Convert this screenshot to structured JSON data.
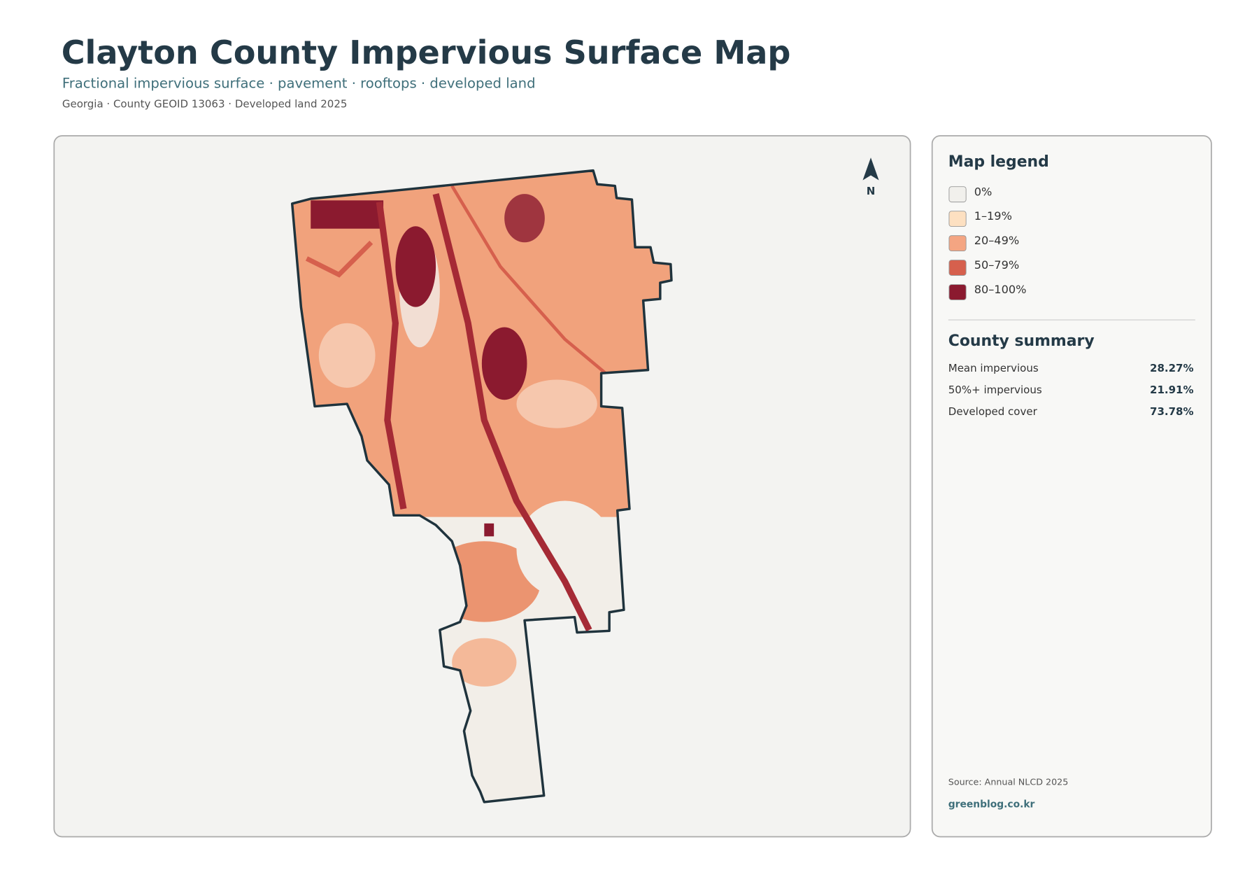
{
  "header": {
    "title": "Clayton County Impervious Surface Map",
    "subtitle": "Fractional impervious surface · pavement · rooftops · developed land",
    "meta": "Georgia · County GEOID 13063 · Developed land 2025"
  },
  "map": {
    "north_label": "N"
  },
  "legend": {
    "title": "Map legend",
    "items": [
      {
        "label": "0%",
        "color": "#f1f0ec"
      },
      {
        "label": "1–19%",
        "color": "#fde0c1"
      },
      {
        "label": "20–49%",
        "color": "#f4a582"
      },
      {
        "label": "50–79%",
        "color": "#d6604d"
      },
      {
        "label": "80–100%",
        "color": "#8b1a2f"
      }
    ]
  },
  "summary": {
    "title": "County summary",
    "rows": [
      {
        "label": "Mean impervious",
        "value": "28.27%"
      },
      {
        "label": "50%+ impervious",
        "value": "21.91%"
      },
      {
        "label": "Developed cover",
        "value": "73.78%"
      }
    ]
  },
  "footer": {
    "source": "Source: Annual NLCD 2025",
    "site": "greenblog.co.kr"
  }
}
